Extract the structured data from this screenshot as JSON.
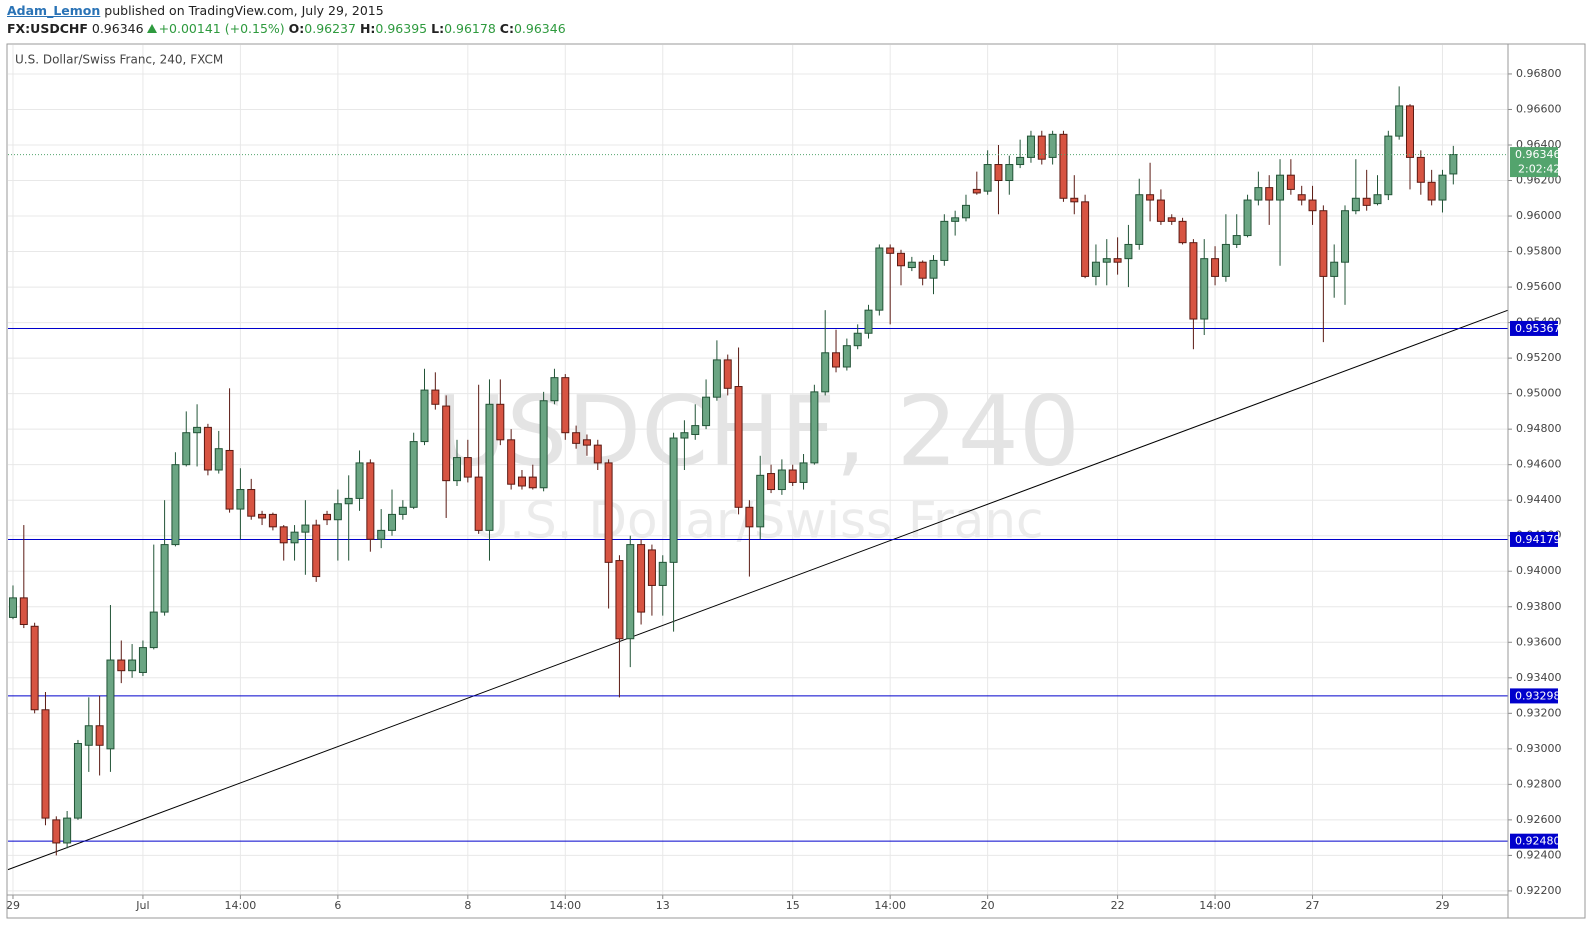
{
  "header": {
    "user": "Adam_Lemon",
    "published": "published on TradingView.com, July 29, 2015",
    "symbol": "FX:USDCHF",
    "change": "+0.00141 (+0.15%)",
    "ohlc_labels": [
      "O:",
      "H:",
      "L:",
      "C:"
    ]
  },
  "chart_data": {
    "type": "candlestick",
    "title": "U.S. Dollar/Swiss Franc, 240, FXCM",
    "watermark": "USDCHF, 240",
    "watermark_sub": "U.S. Dollar/Swiss Franc",
    "up_color": "#6ba583",
    "down_color": "#d75442",
    "up_border": "#225437",
    "down_border": "#5b1a13",
    "grid": true,
    "x": [
      0,
      1,
      2,
      3,
      4,
      5,
      6,
      7,
      8,
      9,
      10,
      11,
      12,
      13,
      14,
      15,
      16,
      17,
      18,
      19,
      20,
      21,
      22,
      23,
      24,
      25,
      26,
      27,
      28,
      29,
      30,
      31,
      32,
      33,
      34,
      35,
      36,
      37,
      38,
      39,
      40,
      41,
      42,
      43,
      44,
      45,
      46,
      47,
      48,
      49,
      50,
      51,
      52,
      53,
      54,
      55,
      56,
      57,
      58,
      59,
      60,
      61,
      62,
      63,
      64,
      65,
      66,
      67,
      68,
      69,
      70,
      71,
      72,
      73,
      74,
      75,
      76,
      77,
      78,
      79,
      80,
      81,
      82,
      83,
      84,
      85,
      86,
      87,
      88,
      89,
      90,
      91,
      92,
      93,
      94,
      95,
      96,
      97,
      98,
      99,
      100,
      101,
      102,
      103,
      104,
      105,
      106,
      107,
      108,
      109,
      110,
      111,
      112,
      113,
      114,
      115,
      116,
      117,
      118,
      119,
      120,
      121,
      122,
      123,
      124,
      125,
      126,
      127,
      128,
      129,
      130,
      131,
      132,
      133
    ],
    "open": [
      0.9374,
      0.9385,
      0.9369,
      0.9322,
      0.926,
      0.9247,
      0.9261,
      0.9302,
      0.9313,
      0.93,
      0.935,
      0.9344,
      0.9343,
      0.9357,
      0.9377,
      0.9415,
      0.946,
      0.9478,
      0.9481,
      0.9457,
      0.9468,
      0.9435,
      0.9446,
      0.9432,
      0.9432,
      0.9425,
      0.9416,
      0.9422,
      0.9426,
      0.9432,
      0.9429,
      0.9438,
      0.9441,
      0.9461,
      0.9418,
      0.9423,
      0.9432,
      0.9436,
      0.9473,
      0.9502,
      0.9493,
      0.9451,
      0.9464,
      0.9453,
      0.9423,
      0.9494,
      0.9474,
      0.9453,
      0.9453,
      0.9447,
      0.9496,
      0.9509,
      0.9478,
      0.9474,
      0.9471,
      0.9461,
      0.9406,
      0.9362,
      0.9415,
      0.9412,
      0.9392,
      0.9405,
      0.9475,
      0.9477,
      0.9482,
      0.9498,
      0.9519,
      0.9504,
      0.9436,
      0.9425,
      0.9455,
      0.9446,
      0.9457,
      0.945,
      0.9461,
      0.9501,
      0.9523,
      0.9515,
      0.9527,
      0.9534,
      0.9547,
      0.9582,
      0.9579,
      0.9571,
      0.9574,
      0.9565,
      0.9575,
      0.9597,
      0.9599,
      0.9615,
      0.9614,
      0.9629,
      0.962,
      0.9629,
      0.9633,
      0.9645,
      0.9633,
      0.9646,
      0.961,
      0.9608,
      0.9566,
      0.9574,
      0.9576,
      0.9576,
      0.9584,
      0.9612,
      0.9609,
      0.9599,
      0.9597,
      0.9585,
      0.9542,
      0.9576,
      0.9566,
      0.9584,
      0.9589,
      0.9609,
      0.9616,
      0.9609,
      0.9623,
      0.9612,
      0.9609,
      0.9603,
      0.9566,
      0.9574,
      0.9603,
      0.961,
      0.9607,
      0.9612,
      0.9645,
      0.9662,
      0.9633,
      0.9619,
      0.9609,
      0.96237
    ],
    "high": [
      0.9392,
      0.9426,
      0.9371,
      0.9332,
      0.9262,
      0.9265,
      0.9305,
      0.9329,
      0.933,
      0.9381,
      0.9361,
      0.9359,
      0.9361,
      0.9415,
      0.944,
      0.9467,
      0.949,
      0.9494,
      0.9483,
      0.9479,
      0.9503,
      0.9458,
      0.9452,
      0.9434,
      0.9433,
      0.9426,
      0.9426,
      0.944,
      0.9429,
      0.9434,
      0.9446,
      0.9454,
      0.9468,
      0.9463,
      0.9435,
      0.9446,
      0.944,
      0.9478,
      0.9514,
      0.9512,
      0.9499,
      0.9474,
      0.9474,
      0.9505,
      0.9508,
      0.9508,
      0.948,
      0.9457,
      0.946,
      0.9501,
      0.9514,
      0.9511,
      0.9482,
      0.9477,
      0.9474,
      0.9463,
      0.9409,
      0.942,
      0.9418,
      0.9415,
      0.9409,
      0.9478,
      0.9485,
      0.9494,
      0.9508,
      0.953,
      0.9522,
      0.9526,
      0.944,
      0.9465,
      0.946,
      0.9463,
      0.946,
      0.9466,
      0.9505,
      0.9547,
      0.9536,
      0.9531,
      0.9539,
      0.955,
      0.9584,
      0.9584,
      0.9581,
      0.9577,
      0.9575,
      0.9578,
      0.9601,
      0.9603,
      0.9612,
      0.9625,
      0.9637,
      0.964,
      0.9634,
      0.9643,
      0.9648,
      0.9648,
      0.9648,
      0.9648,
      0.9623,
      0.9612,
      0.9584,
      0.9587,
      0.9588,
      0.9595,
      0.9621,
      0.963,
      0.9615,
      0.9601,
      0.9599,
      0.9587,
      0.9587,
      0.9583,
      0.9601,
      0.9601,
      0.9612,
      0.9625,
      0.9623,
      0.9632,
      0.9632,
      0.9617,
      0.9617,
      0.9606,
      0.9584,
      0.9606,
      0.9632,
      0.9626,
      0.9623,
      0.9648,
      0.9673,
      0.9663,
      0.9637,
      0.9626,
      0.9626,
      0.96395
    ],
    "low": [
      0.9373,
      0.9368,
      0.932,
      0.9257,
      0.924,
      0.9244,
      0.926,
      0.9287,
      0.9285,
      0.9287,
      0.9337,
      0.934,
      0.9341,
      0.9356,
      0.9375,
      0.9414,
      0.9459,
      0.9459,
      0.9454,
      0.9455,
      0.9433,
      0.9418,
      0.9429,
      0.9426,
      0.9423,
      0.9406,
      0.9406,
      0.9398,
      0.9394,
      0.9426,
      0.9406,
      0.9406,
      0.9434,
      0.9411,
      0.9413,
      0.942,
      0.9429,
      0.9435,
      0.9471,
      0.9491,
      0.943,
      0.9448,
      0.945,
      0.9421,
      0.9406,
      0.9471,
      0.9446,
      0.9446,
      0.9446,
      0.9445,
      0.9494,
      0.9474,
      0.9469,
      0.9465,
      0.9457,
      0.9379,
      0.9329,
      0.9346,
      0.937,
      0.9375,
      0.9375,
      0.9366,
      0.9457,
      0.9474,
      0.948,
      0.9496,
      0.9499,
      0.9432,
      0.9397,
      0.9418,
      0.9444,
      0.9443,
      0.9448,
      0.9446,
      0.946,
      0.9499,
      0.9512,
      0.9513,
      0.9525,
      0.9531,
      0.9544,
      0.9539,
      0.9561,
      0.9569,
      0.9561,
      0.9556,
      0.9572,
      0.9589,
      0.9597,
      0.9612,
      0.9612,
      0.9601,
      0.9612,
      0.9627,
      0.963,
      0.9629,
      0.9629,
      0.9608,
      0.9601,
      0.9565,
      0.9561,
      0.9561,
      0.9567,
      0.956,
      0.9581,
      0.9597,
      0.9595,
      0.9595,
      0.9584,
      0.9525,
      0.9533,
      0.9561,
      0.9563,
      0.9582,
      0.9588,
      0.9606,
      0.9595,
      0.9572,
      0.9612,
      0.9606,
      0.9595,
      0.9529,
      0.9554,
      0.955,
      0.9601,
      0.9603,
      0.9606,
      0.9609,
      0.9643,
      0.9615,
      0.9612,
      0.9606,
      0.9602,
      0.96178
    ],
    "close": [
      0.9385,
      0.937,
      0.9322,
      0.9261,
      0.9247,
      0.9261,
      0.9303,
      0.9313,
      0.9302,
      0.935,
      0.9344,
      0.935,
      0.9357,
      0.9377,
      0.9415,
      0.946,
      0.9478,
      0.9481,
      0.9457,
      0.9469,
      0.9435,
      0.9446,
      0.9431,
      0.943,
      0.9425,
      0.9416,
      0.9422,
      0.9426,
      0.9397,
      0.9429,
      0.9438,
      0.9441,
      0.9461,
      0.9418,
      0.9423,
      0.9432,
      0.9436,
      0.9473,
      0.9502,
      0.9494,
      0.9451,
      0.9464,
      0.9453,
      0.9423,
      0.9494,
      0.9474,
      0.9449,
      0.9448,
      0.9447,
      0.9496,
      0.9509,
      0.9478,
      0.9472,
      0.9471,
      0.9461,
      0.9405,
      0.9362,
      0.9415,
      0.9377,
      0.9392,
      0.9405,
      0.9475,
      0.9478,
      0.9482,
      0.9498,
      0.9519,
      0.9503,
      0.9436,
      0.9425,
      0.9454,
      0.9446,
      0.9457,
      0.945,
      0.9461,
      0.9501,
      0.9523,
      0.9515,
      0.9527,
      0.9534,
      0.9547,
      0.9582,
      0.9579,
      0.9572,
      0.9574,
      0.9565,
      0.9575,
      0.9597,
      0.9599,
      0.9606,
      0.9613,
      0.9629,
      0.962,
      0.9629,
      0.9633,
      0.9645,
      0.9632,
      0.9646,
      0.961,
      0.9608,
      0.9566,
      0.9574,
      0.9576,
      0.9574,
      0.9584,
      0.9612,
      0.9609,
      0.9597,
      0.9597,
      0.9585,
      0.9542,
      0.9576,
      0.9566,
      0.9584,
      0.9589,
      0.9609,
      0.9616,
      0.9609,
      0.9623,
      0.9615,
      0.9609,
      0.9603,
      0.9566,
      0.9574,
      0.9603,
      0.961,
      0.9606,
      0.9612,
      0.9645,
      0.9662,
      0.9633,
      0.9619,
      0.9609,
      0.9623,
      0.96346
    ],
    "xlim": [
      -0.46,
      138.05
    ],
    "xticks": [
      {
        "value": 0,
        "label": "29"
      },
      {
        "value": 12,
        "label": "Jul"
      },
      {
        "value": 21,
        "label": "14:00"
      },
      {
        "value": 30,
        "label": "6"
      },
      {
        "value": 42,
        "label": "8"
      },
      {
        "value": 51,
        "label": "14:00"
      },
      {
        "value": 60,
        "label": "13"
      },
      {
        "value": 72,
        "label": "15"
      },
      {
        "value": 81,
        "label": "14:00"
      },
      {
        "value": 90,
        "label": "20"
      },
      {
        "value": 102,
        "label": "22"
      },
      {
        "value": 111,
        "label": "14:00"
      },
      {
        "value": 120,
        "label": "27"
      },
      {
        "value": 132,
        "label": "29"
      }
    ],
    "ylim": [
      0.92177,
      0.96963
    ],
    "yticks": [
      {
        "value": 0.922,
        "label": "0.92200"
      },
      {
        "value": 0.924,
        "label": "0.92400"
      },
      {
        "value": 0.926,
        "label": "0.92600"
      },
      {
        "value": 0.928,
        "label": "0.92800"
      },
      {
        "value": 0.93,
        "label": "0.93000"
      },
      {
        "value": 0.932,
        "label": "0.93200"
      },
      {
        "value": 0.934,
        "label": "0.93400"
      },
      {
        "value": 0.936,
        "label": "0.93600"
      },
      {
        "value": 0.938,
        "label": "0.93800"
      },
      {
        "value": 0.94,
        "label": "0.94000"
      },
      {
        "value": 0.942,
        "label": "0.94200"
      },
      {
        "value": 0.944,
        "label": "0.94400"
      },
      {
        "value": 0.946,
        "label": "0.94600"
      },
      {
        "value": 0.948,
        "label": "0.94800"
      },
      {
        "value": 0.95,
        "label": "0.95000"
      },
      {
        "value": 0.952,
        "label": "0.95200"
      },
      {
        "value": 0.954,
        "label": "0.95400"
      },
      {
        "value": 0.956,
        "label": "0.95600"
      },
      {
        "value": 0.958,
        "label": "0.95800"
      },
      {
        "value": 0.96,
        "label": "0.96000"
      },
      {
        "value": 0.962,
        "label": "0.96200"
      },
      {
        "value": 0.964,
        "label": "0.96400"
      },
      {
        "value": 0.966,
        "label": "0.96600"
      },
      {
        "value": 0.968,
        "label": "0.96800"
      }
    ],
    "hlines": [
      0.95367,
      0.94179,
      0.93298,
      {
        "value": 0.9248,
        "label": "0.92480"
      }
    ],
    "hline_color": "#0000cc",
    "trendline": {
      "x": [
        -0.46,
        138.05
      ],
      "y": [
        0.9232,
        0.9547
      ],
      "color": "#000000"
    },
    "last_color": "#53a46d",
    "countdown": "2:02:42"
  }
}
